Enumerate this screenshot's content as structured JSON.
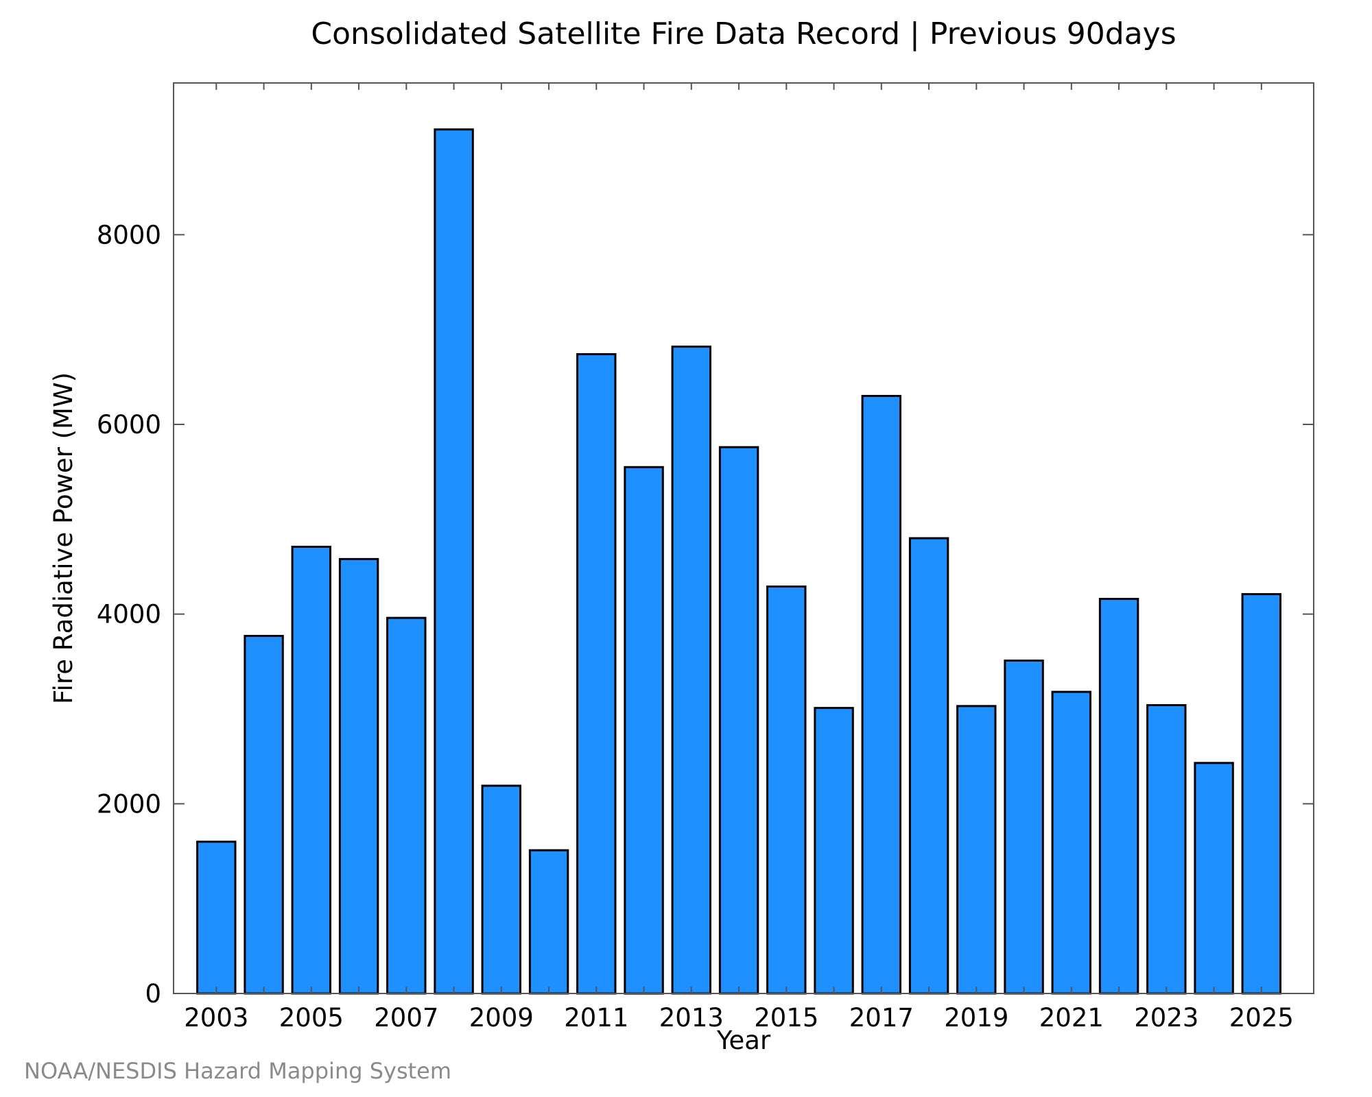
{
  "chart_data": {
    "type": "bar",
    "title": "Consolidated Satellite Fire Data Record | Previous 90days",
    "xlabel": "Year",
    "ylabel": "Fire Radiative Power (MW)",
    "categories": [
      "2003",
      "2004",
      "2005",
      "2006",
      "2007",
      "2008",
      "2009",
      "2010",
      "2011",
      "2012",
      "2013",
      "2014",
      "2015",
      "2016",
      "2017",
      "2018",
      "2019",
      "2020",
      "2021",
      "2022",
      "2023",
      "2024",
      "2025"
    ],
    "values": [
      1600,
      3770,
      4710,
      4580,
      3960,
      9110,
      2190,
      1510,
      6740,
      5550,
      6820,
      5760,
      4290,
      3010,
      6300,
      4800,
      3030,
      3510,
      3180,
      4160,
      3040,
      2430,
      4210
    ],
    "x_tick_labels": [
      "2003",
      "2005",
      "2007",
      "2009",
      "2011",
      "2013",
      "2015",
      "2017",
      "2019",
      "2021",
      "2023",
      "2025"
    ],
    "y_ticks": [
      0,
      2000,
      4000,
      6000,
      8000
    ],
    "ylim": [
      0,
      9600
    ],
    "grid": false,
    "legend": "none",
    "bar_color": "#1e90ff",
    "bar_edge_color": "#000000"
  },
  "footer": {
    "credit": "NOAA/NESDIS Hazard Mapping System"
  }
}
